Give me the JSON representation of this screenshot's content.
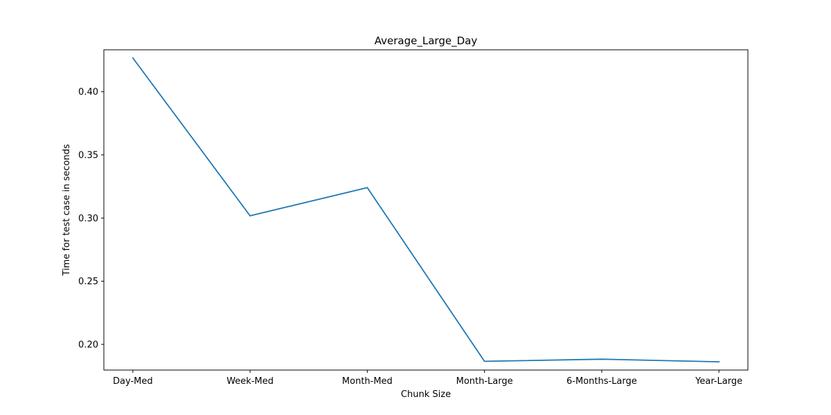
{
  "chart_data": {
    "type": "line",
    "title": "Average_Large_Day",
    "xlabel": "Chunk Size",
    "ylabel": "Time for test case in seconds",
    "categories": [
      "Day-Med",
      "Week-Med",
      "Month-Med",
      "Month-Large",
      "6-Months-Large",
      "Year-Large"
    ],
    "series": [
      {
        "values": [
          0.4267,
          0.3018,
          0.3241,
          0.1866,
          0.1883,
          0.1862
        ],
        "color": "#1f77b4"
      }
    ],
    "yticks": [
      0.2,
      0.25,
      0.3,
      0.35,
      0.4
    ],
    "ytick_labels": [
      "0.20",
      "0.25",
      "0.30",
      "0.35",
      "0.40"
    ],
    "ylim": [
      0.1797,
      0.4332
    ],
    "grid": false,
    "legend": "none"
  }
}
